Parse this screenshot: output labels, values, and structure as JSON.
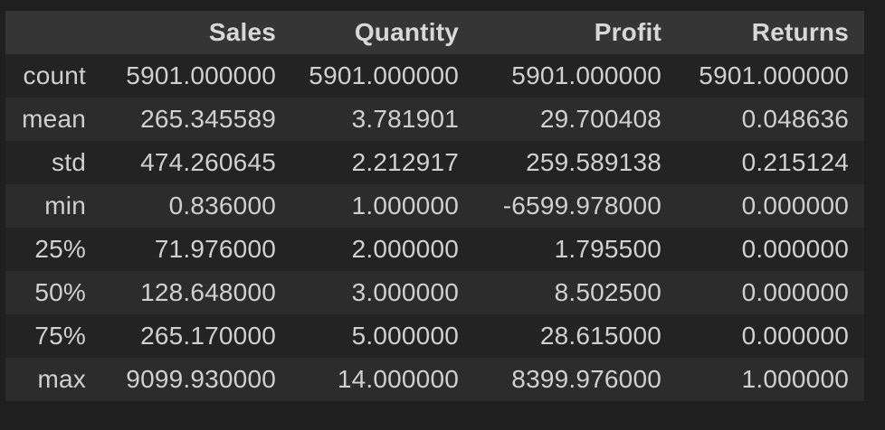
{
  "colors": {
    "page_bg": "#1f1f1f",
    "header_bg": "#353535",
    "row_dark_bg": "#232323",
    "row_light_bg": "#2c2c2c",
    "header_text": "#d8d8d8",
    "body_text": "#d0d0d0"
  },
  "chart_data": {
    "type": "table",
    "columns": [
      "",
      "Sales",
      "Quantity",
      "Profit",
      "Returns"
    ],
    "rows": [
      {
        "label": "count",
        "values": [
          "5901.000000",
          "5901.000000",
          "5901.000000",
          "5901.000000"
        ]
      },
      {
        "label": "mean",
        "values": [
          "265.345589",
          "3.781901",
          "29.700408",
          "0.048636"
        ]
      },
      {
        "label": "std",
        "values": [
          "474.260645",
          "2.212917",
          "259.589138",
          "0.215124"
        ]
      },
      {
        "label": "min",
        "values": [
          "0.836000",
          "1.000000",
          "-6599.978000",
          "0.000000"
        ]
      },
      {
        "label": "25%",
        "values": [
          "71.976000",
          "2.000000",
          "1.795500",
          "0.000000"
        ]
      },
      {
        "label": "50%",
        "values": [
          "128.648000",
          "3.000000",
          "8.502500",
          "0.000000"
        ]
      },
      {
        "label": "75%",
        "values": [
          "265.170000",
          "5.000000",
          "28.615000",
          "0.000000"
        ]
      },
      {
        "label": "max",
        "values": [
          "9099.930000",
          "14.000000",
          "8399.976000",
          "1.000000"
        ]
      }
    ],
    "layout": {
      "striped": true,
      "header_position": "top",
      "grid": "off",
      "legend": "none"
    }
  }
}
